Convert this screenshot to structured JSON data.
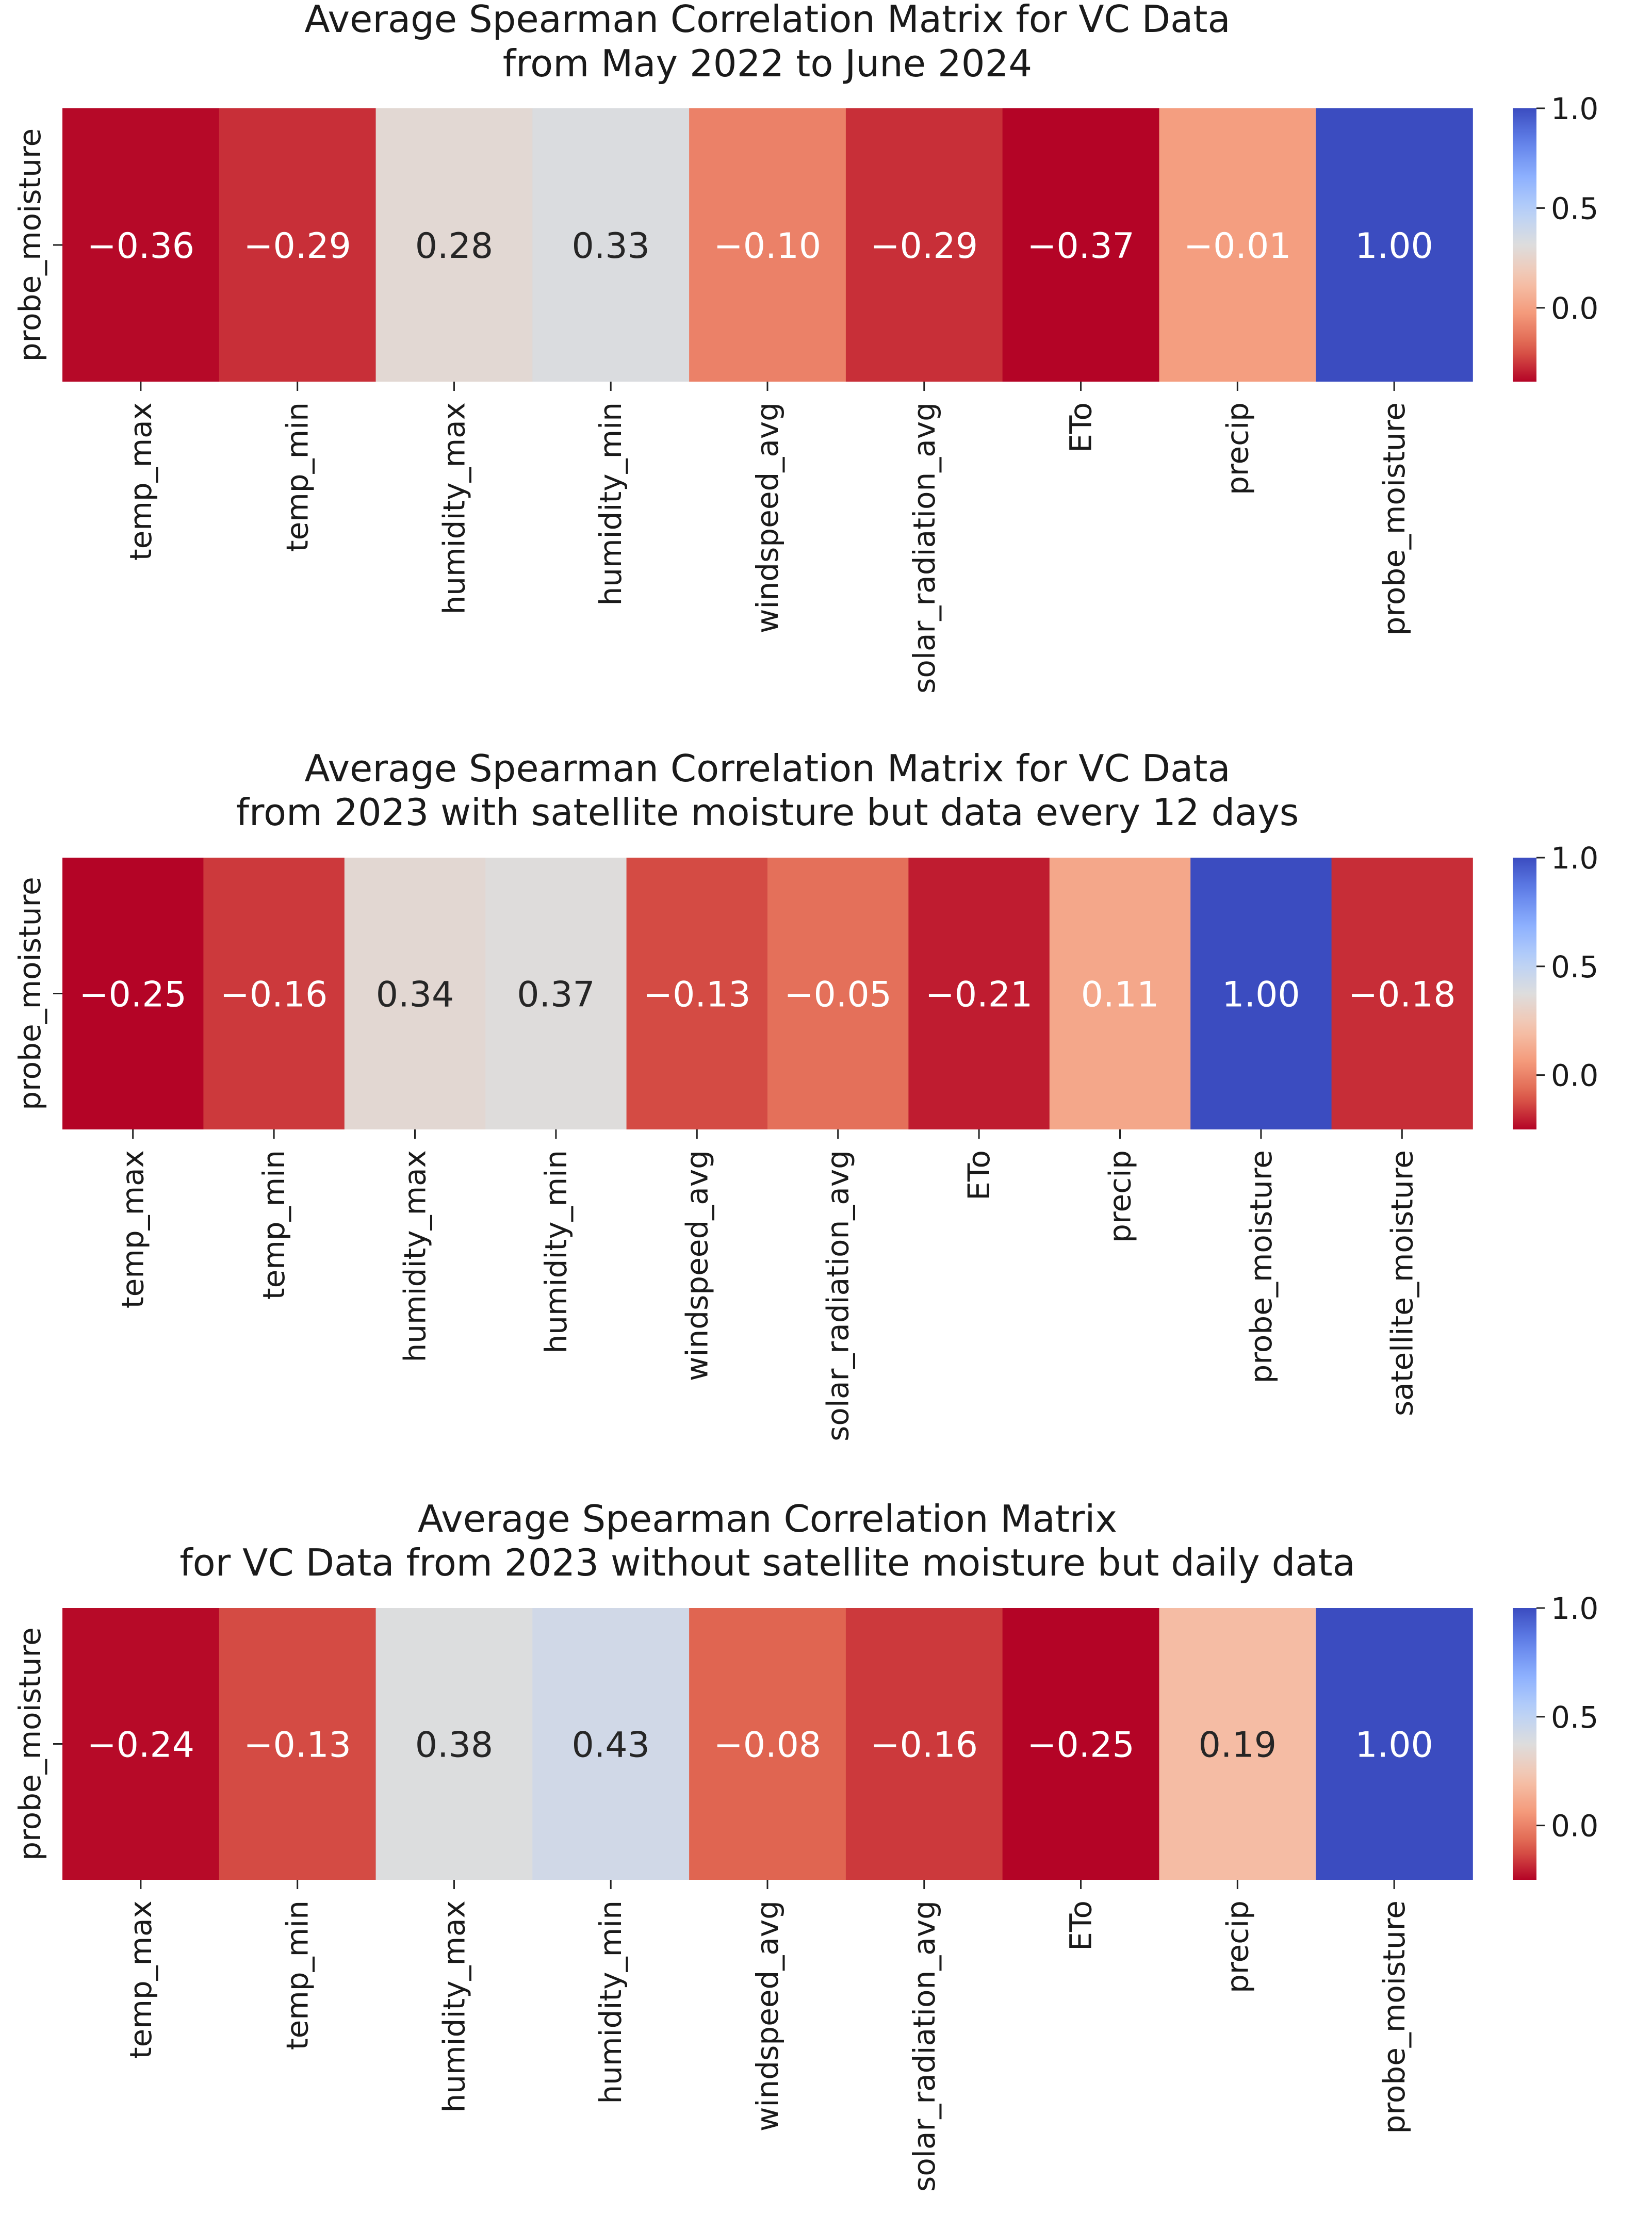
{
  "chart_data": [
    {
      "type": "heatmap",
      "title": "Average Spearman Correlation Matrix for VC Data\nfrom May 2022 to June 2024",
      "row_label": "probe_moisture",
      "columns": [
        "temp_max",
        "temp_min",
        "humidity_max",
        "humidity_min",
        "windspeed_avg",
        "solar_radiation_avg",
        "ETo",
        "precip",
        "probe_moisture"
      ],
      "values": [
        -0.36,
        -0.29,
        0.28,
        0.33,
        -0.1,
        -0.29,
        -0.37,
        -0.01,
        1.0
      ],
      "value_labels": [
        "−0.36",
        "−0.29",
        "0.28",
        "0.33",
        "−0.10",
        "−0.29",
        "−0.37",
        "−0.01",
        "1.00"
      ],
      "colorbar": {
        "ticks": [
          "0.0",
          "0.5",
          "1.0"
        ],
        "tick_values": [
          0.0,
          0.5,
          1.0
        ],
        "range": [
          -0.37,
          1.0
        ]
      },
      "colormap": "coolwarm_r"
    },
    {
      "type": "heatmap",
      "title": "Average Spearman Correlation Matrix for VC Data\nfrom 2023 with satellite moisture but data every 12 days",
      "row_label": "probe_moisture",
      "columns": [
        "temp_max",
        "temp_min",
        "humidity_max",
        "humidity_min",
        "windspeed_avg",
        "solar_radiation_avg",
        "ETo",
        "precip",
        "probe_moisture",
        "satellite_moisture"
      ],
      "values": [
        -0.25,
        -0.16,
        0.34,
        0.37,
        -0.13,
        -0.05,
        -0.21,
        0.11,
        1.0,
        -0.18
      ],
      "value_labels": [
        "−0.25",
        "−0.16",
        "0.34",
        "0.37",
        "−0.13",
        "−0.05",
        "−0.21",
        "0.11",
        "1.00",
        "−0.18"
      ],
      "colorbar": {
        "ticks": [
          "0.0",
          "0.5",
          "1.0"
        ],
        "tick_values": [
          0.0,
          0.5,
          1.0
        ],
        "range": [
          -0.25,
          1.0
        ]
      },
      "colormap": "coolwarm_r"
    },
    {
      "type": "heatmap",
      "title": "Average Spearman Correlation Matrix\nfor VC Data from 2023 without satellite moisture but daily data",
      "row_label": "probe_moisture",
      "columns": [
        "temp_max",
        "temp_min",
        "humidity_max",
        "humidity_min",
        "windspeed_avg",
        "solar_radiation_avg",
        "ETo",
        "precip",
        "probe_moisture"
      ],
      "values": [
        -0.24,
        -0.13,
        0.38,
        0.43,
        -0.08,
        -0.16,
        -0.25,
        0.19,
        1.0
      ],
      "value_labels": [
        "−0.24",
        "−0.13",
        "0.38",
        "0.43",
        "−0.08",
        "−0.16",
        "−0.25",
        "0.19",
        "1.00"
      ],
      "colorbar": {
        "ticks": [
          "0.0",
          "0.5",
          "1.0"
        ],
        "tick_values": [
          0.0,
          0.5,
          1.0
        ],
        "range": [
          -0.25,
          1.0
        ]
      },
      "colormap": "coolwarm_r"
    }
  ]
}
